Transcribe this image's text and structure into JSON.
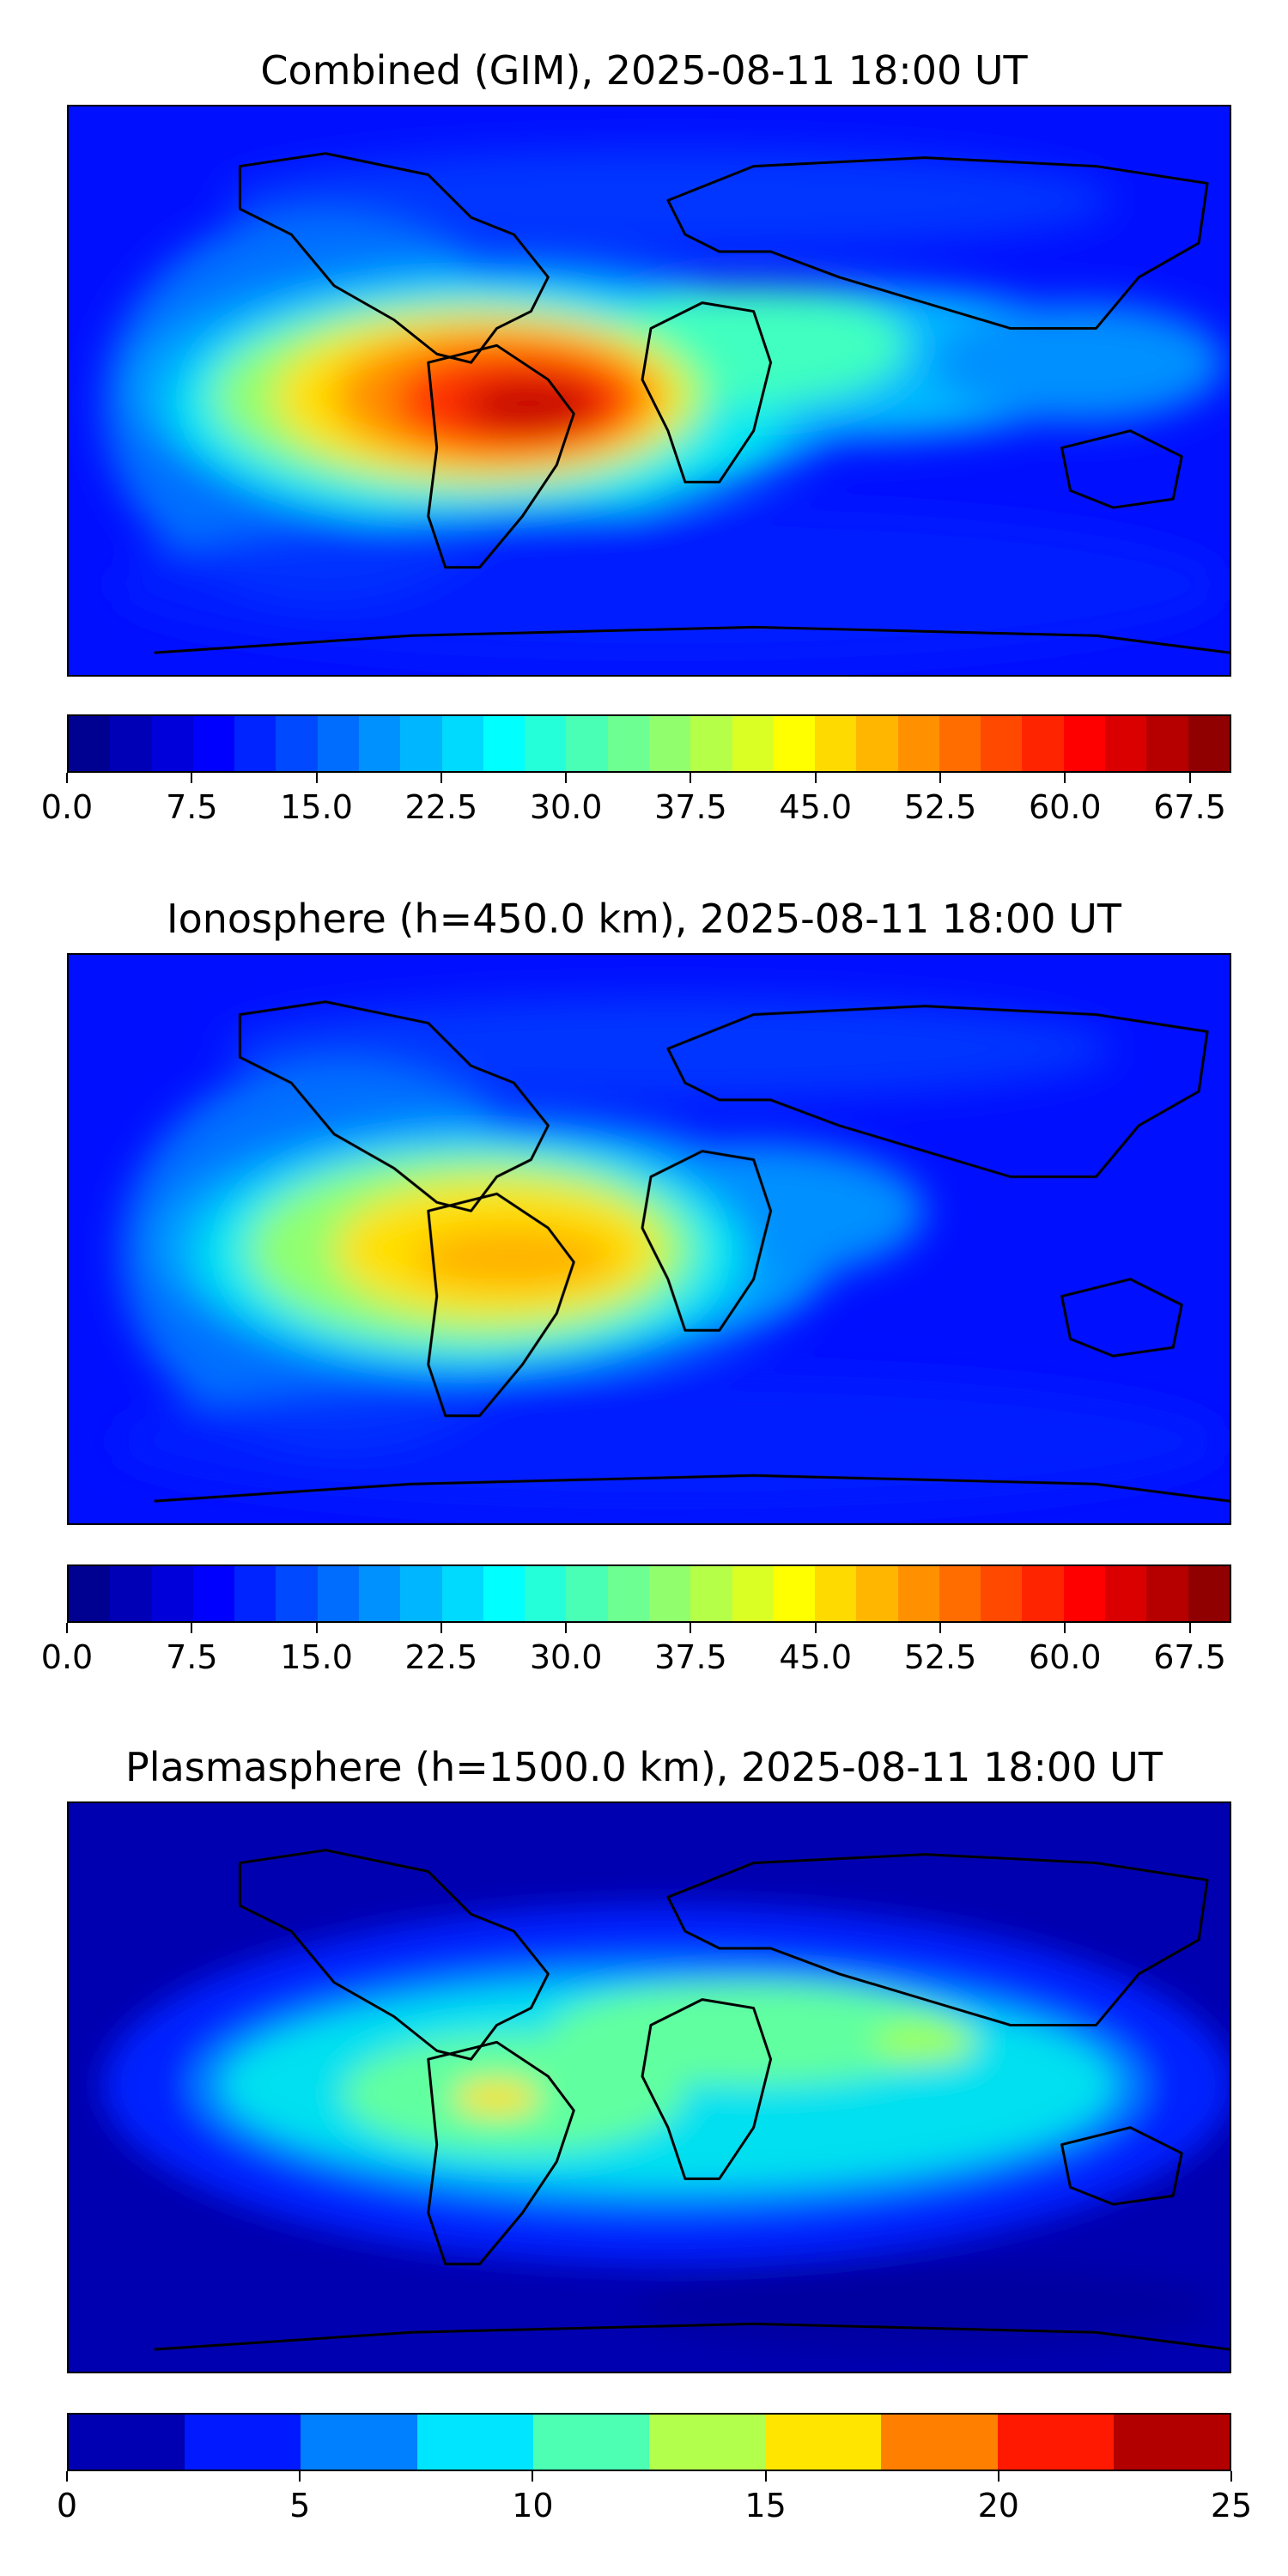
{
  "chart_data": [
    {
      "type": "heatmap",
      "title": "Combined (GIM), 2025-08-11 18:00 UT",
      "colorbar": {
        "range": [
          0,
          70
        ],
        "levels": 28,
        "ticks": [
          0.0,
          7.5,
          15.0,
          22.5,
          30.0,
          37.5,
          45.0,
          52.5,
          60.0,
          67.5
        ],
        "tick_labels": [
          "0.0",
          "7.5",
          "15.0",
          "22.5",
          "30.0",
          "37.5",
          "45.0",
          "52.5",
          "60.0",
          "67.5"
        ]
      },
      "approx_max": 67,
      "max_region": "South America / tropical South Atlantic"
    },
    {
      "type": "heatmap",
      "title": "Ionosphere  (h=450.0 km), 2025-08-11 18:00 UT",
      "colorbar": {
        "range": [
          0,
          70
        ],
        "levels": 28,
        "ticks": [
          0.0,
          7.5,
          15.0,
          22.5,
          30.0,
          37.5,
          45.0,
          52.5,
          60.0,
          67.5
        ],
        "tick_labels": [
          "0.0",
          "7.5",
          "15.0",
          "22.5",
          "30.0",
          "37.5",
          "45.0",
          "52.5",
          "60.0",
          "67.5"
        ]
      },
      "approx_max": 50,
      "max_region": "South America"
    },
    {
      "type": "heatmap",
      "title": "Plasmasphere (h=1500.0 km), 2025-08-11 18:00 UT",
      "colorbar": {
        "range": [
          0,
          25
        ],
        "levels": 10,
        "ticks": [
          0,
          5,
          10,
          15,
          20,
          25
        ],
        "tick_labels": [
          "0",
          "5",
          "10",
          "15",
          "20",
          "25"
        ]
      },
      "approx_max": 17,
      "max_region": "Brazil"
    }
  ],
  "colormap": {
    "name": "jet",
    "stops": [
      "#00007f",
      "#0000ff",
      "#007fff",
      "#00ffff",
      "#7fff7f",
      "#ffff00",
      "#ff7f00",
      "#ff0000",
      "#7f0000"
    ]
  }
}
